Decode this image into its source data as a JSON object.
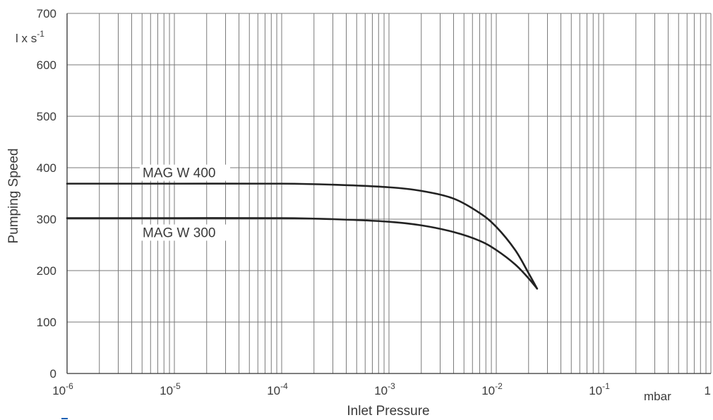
{
  "chart_data": {
    "type": "line",
    "x_scale": "log",
    "xlim": [
      1e-06,
      1
    ],
    "ylim": [
      0,
      700
    ],
    "grid": true,
    "xlabel": "Inlet Pressure",
    "x_unit": "mbar",
    "ylabel": "Pumping Speed",
    "y_unit": "l x s-1",
    "y_ticks": [
      "0",
      "100",
      "200",
      "300",
      "400",
      "500",
      "600",
      "700"
    ],
    "x_ticks": [
      {
        "base": "10",
        "exp": "-6"
      },
      {
        "base": "10",
        "exp": "-5"
      },
      {
        "base": "10",
        "exp": "-4"
      },
      {
        "base": "10",
        "exp": "-3"
      },
      {
        "base": "10",
        "exp": "-2"
      },
      {
        "base": "10",
        "exp": "-1"
      },
      {
        "base": "1",
        "exp": ""
      }
    ],
    "series": [
      {
        "name": "MAG W 400",
        "x": [
          1e-06,
          1e-05,
          0.0001,
          0.0003,
          0.001,
          0.002,
          0.004,
          0.007,
          0.01,
          0.015,
          0.02,
          0.024
        ],
        "y": [
          369,
          369,
          369,
          367,
          362,
          355,
          340,
          312,
          285,
          240,
          195,
          165
        ]
      },
      {
        "name": "MAG W 300",
        "x": [
          1e-06,
          1e-05,
          0.0001,
          0.0003,
          0.001,
          0.002,
          0.004,
          0.007,
          0.01,
          0.015,
          0.02,
          0.024
        ],
        "y": [
          302,
          302,
          302,
          300,
          295,
          288,
          275,
          258,
          240,
          212,
          185,
          165
        ]
      }
    ]
  }
}
